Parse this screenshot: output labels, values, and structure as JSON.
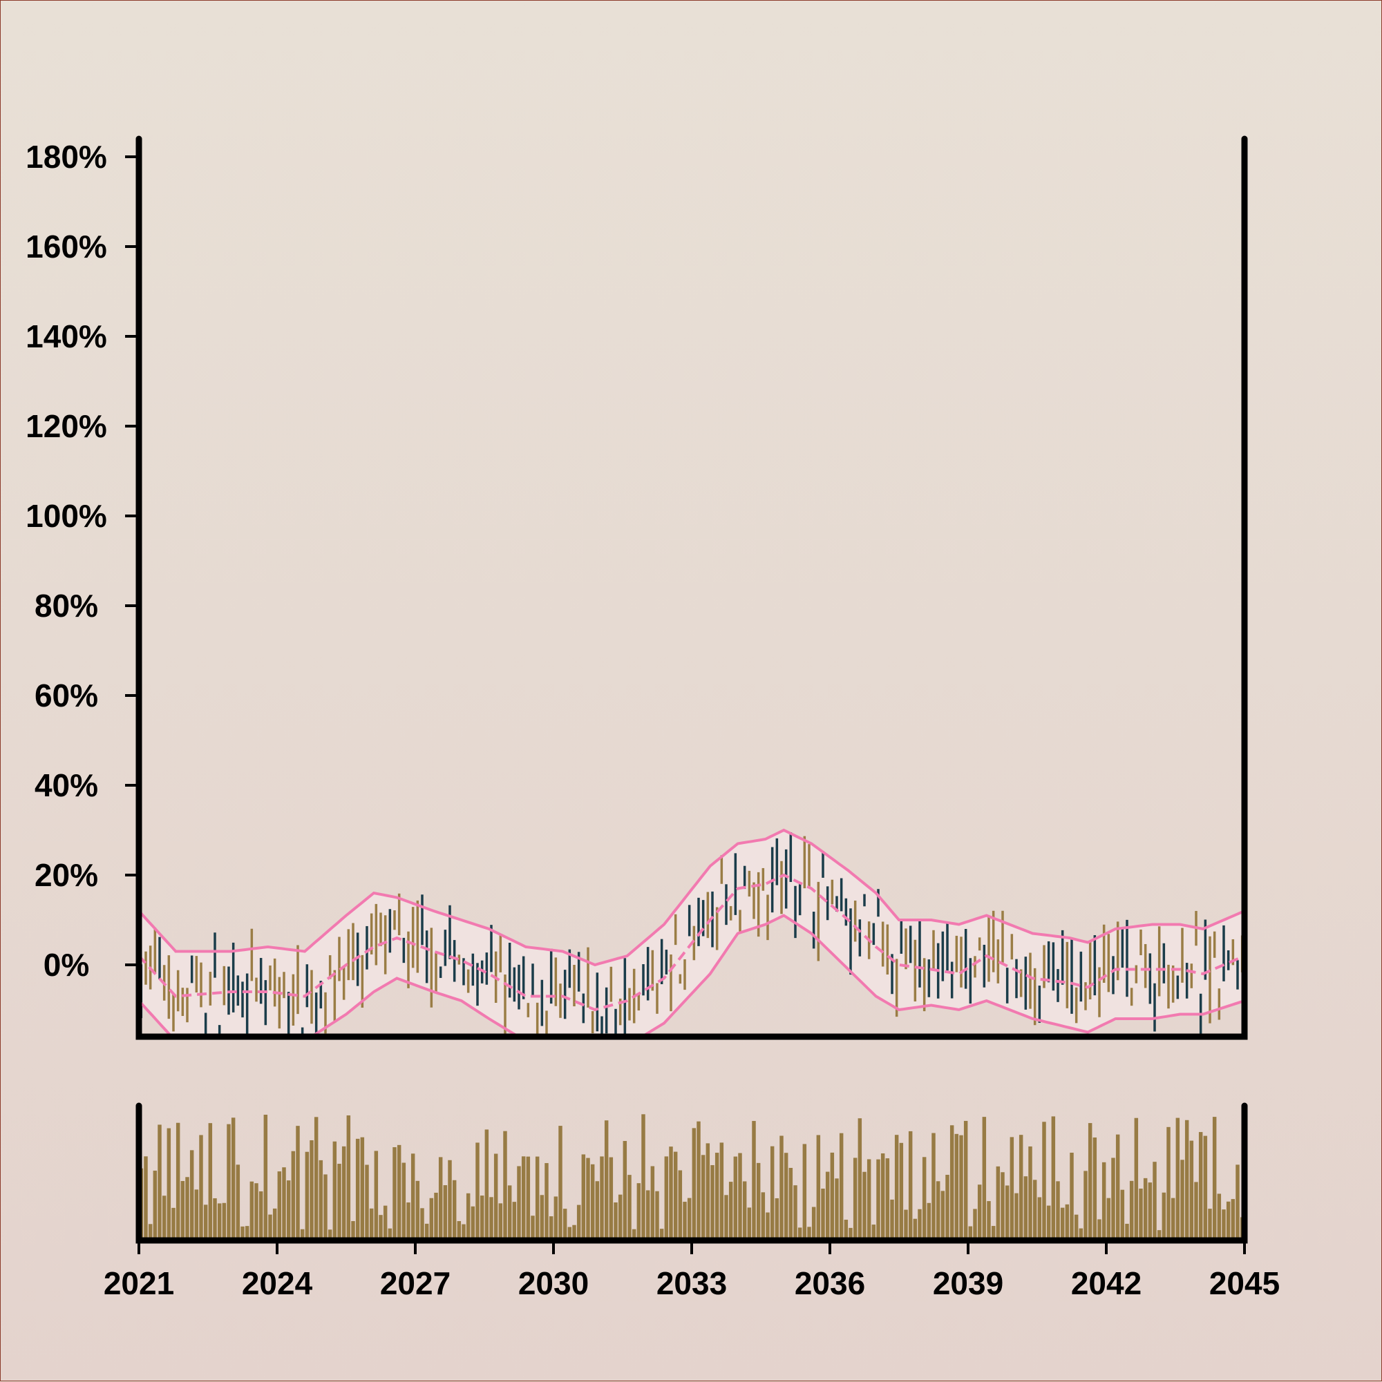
{
  "colors": {
    "background": "#e6dcd4",
    "frame": "#000000",
    "up_bar": "#9a7d45",
    "down_bar": "#1b3d4a",
    "band": "#f27ab0",
    "band_fill": "#f3e6e6",
    "volume": "#977b44"
  },
  "chart_data": {
    "type": "ohlc-with-bands-and-volume",
    "title": "",
    "xlabel": "",
    "ylabel": "",
    "x_range": [
      "2021-01-01",
      "2045-01-01"
    ],
    "x_ticks": [
      "2021",
      "2024",
      "2027",
      "2030",
      "2033",
      "2036",
      "2039",
      "2042",
      "2045"
    ],
    "y_range": [
      -16,
      184
    ],
    "y_ticks": [
      "0%",
      "20%",
      "40%",
      "60%",
      "80%",
      "100%",
      "120%",
      "140%",
      "160%",
      "180%"
    ],
    "y_tick_values": [
      0,
      20,
      40,
      60,
      80,
      100,
      120,
      140,
      160,
      180
    ],
    "bars_per_year": 10,
    "price_anchors": [
      [
        2021.0,
        0
      ],
      [
        2021.8,
        -6
      ],
      [
        2023.0,
        -6
      ],
      [
        2024.0,
        -7
      ],
      [
        2024.8,
        -6
      ],
      [
        2025.6,
        -1
      ],
      [
        2026.0,
        3
      ],
      [
        2026.6,
        6
      ],
      [
        2027.3,
        3
      ],
      [
        2028.0,
        1
      ],
      [
        2028.6,
        -3
      ],
      [
        2029.4,
        -7
      ],
      [
        2030.3,
        -7
      ],
      [
        2031.0,
        -10
      ],
      [
        2031.6,
        -7
      ],
      [
        2032.2,
        -4
      ],
      [
        2033.0,
        4
      ],
      [
        2033.6,
        14
      ],
      [
        2034.3,
        18
      ],
      [
        2035.0,
        20
      ],
      [
        2035.6,
        17
      ],
      [
        2036.4,
        10
      ],
      [
        2037.0,
        6
      ],
      [
        2037.5,
        0
      ],
      [
        2038.2,
        1
      ],
      [
        2039.0,
        -1
      ],
      [
        2039.4,
        2
      ],
      [
        2040.4,
        -3
      ],
      [
        2041.2,
        -4
      ],
      [
        2041.6,
        -5
      ],
      [
        2042.2,
        -1
      ],
      [
        2043.0,
        -2
      ],
      [
        2043.6,
        -1
      ],
      [
        2044.1,
        -2
      ],
      [
        2045.0,
        2
      ]
    ],
    "band_middle": [
      [
        2021.0,
        2
      ],
      [
        2021.8,
        -7
      ],
      [
        2023.0,
        -6
      ],
      [
        2023.8,
        -6
      ],
      [
        2024.6,
        -7
      ],
      [
        2025.5,
        0
      ],
      [
        2026.1,
        4
      ],
      [
        2026.6,
        6
      ],
      [
        2027.4,
        3
      ],
      [
        2028.0,
        1
      ],
      [
        2028.6,
        -2
      ],
      [
        2029.4,
        -7
      ],
      [
        2030.2,
        -7
      ],
      [
        2030.9,
        -10
      ],
      [
        2031.6,
        -8
      ],
      [
        2032.4,
        -3
      ],
      [
        2033.4,
        10
      ],
      [
        2034.0,
        17
      ],
      [
        2034.6,
        18
      ],
      [
        2035.0,
        20
      ],
      [
        2035.6,
        17
      ],
      [
        2036.4,
        10
      ],
      [
        2037.0,
        4
      ],
      [
        2037.5,
        0
      ],
      [
        2038.2,
        -1
      ],
      [
        2038.8,
        -2
      ],
      [
        2039.4,
        2
      ],
      [
        2040.4,
        -3
      ],
      [
        2041.2,
        -4
      ],
      [
        2041.6,
        -5
      ],
      [
        2042.2,
        -1
      ],
      [
        2043.0,
        -1
      ],
      [
        2043.6,
        -1
      ],
      [
        2044.1,
        -2
      ],
      [
        2045.0,
        2
      ]
    ],
    "band_upper": [
      [
        2021.0,
        12
      ],
      [
        2021.8,
        3
      ],
      [
        2023.0,
        3
      ],
      [
        2023.8,
        4
      ],
      [
        2024.6,
        3
      ],
      [
        2025.5,
        11
      ],
      [
        2026.1,
        16
      ],
      [
        2026.6,
        15
      ],
      [
        2027.4,
        12
      ],
      [
        2028.0,
        10
      ],
      [
        2028.6,
        8
      ],
      [
        2029.4,
        4
      ],
      [
        2030.2,
        3
      ],
      [
        2030.9,
        0
      ],
      [
        2031.6,
        2
      ],
      [
        2032.4,
        9
      ],
      [
        2033.4,
        22
      ],
      [
        2034.0,
        27
      ],
      [
        2034.6,
        28
      ],
      [
        2035.0,
        30
      ],
      [
        2035.6,
        27
      ],
      [
        2036.4,
        21
      ],
      [
        2037.0,
        16
      ],
      [
        2037.5,
        10
      ],
      [
        2038.2,
        10
      ],
      [
        2038.8,
        9
      ],
      [
        2039.4,
        11
      ],
      [
        2040.4,
        7
      ],
      [
        2041.2,
        6
      ],
      [
        2041.6,
        5
      ],
      [
        2042.2,
        8
      ],
      [
        2043.0,
        9
      ],
      [
        2043.6,
        9
      ],
      [
        2044.1,
        8
      ],
      [
        2045.0,
        12
      ]
    ],
    "band_lower": [
      [
        2021.0,
        -8
      ],
      [
        2021.8,
        -17
      ],
      [
        2023.0,
        -16
      ],
      [
        2023.8,
        -16
      ],
      [
        2024.6,
        -17
      ],
      [
        2025.5,
        -11
      ],
      [
        2026.1,
        -6
      ],
      [
        2026.6,
        -3
      ],
      [
        2027.4,
        -6
      ],
      [
        2028.0,
        -8
      ],
      [
        2028.6,
        -12
      ],
      [
        2029.4,
        -17
      ],
      [
        2030.2,
        -17
      ],
      [
        2030.9,
        -20
      ],
      [
        2031.6,
        -18
      ],
      [
        2032.4,
        -13
      ],
      [
        2033.4,
        -2
      ],
      [
        2034.0,
        7
      ],
      [
        2034.6,
        9
      ],
      [
        2035.0,
        11
      ],
      [
        2035.6,
        7
      ],
      [
        2036.4,
        -1
      ],
      [
        2037.0,
        -7
      ],
      [
        2037.5,
        -10
      ],
      [
        2038.2,
        -9
      ],
      [
        2038.8,
        -10
      ],
      [
        2039.4,
        -8
      ],
      [
        2040.4,
        -12
      ],
      [
        2041.2,
        -14
      ],
      [
        2041.6,
        -15
      ],
      [
        2042.2,
        -12
      ],
      [
        2043.0,
        -12
      ],
      [
        2043.6,
        -11
      ],
      [
        2044.1,
        -11
      ],
      [
        2045.0,
        -8
      ]
    ],
    "volume_range": [
      0,
      1
    ]
  }
}
